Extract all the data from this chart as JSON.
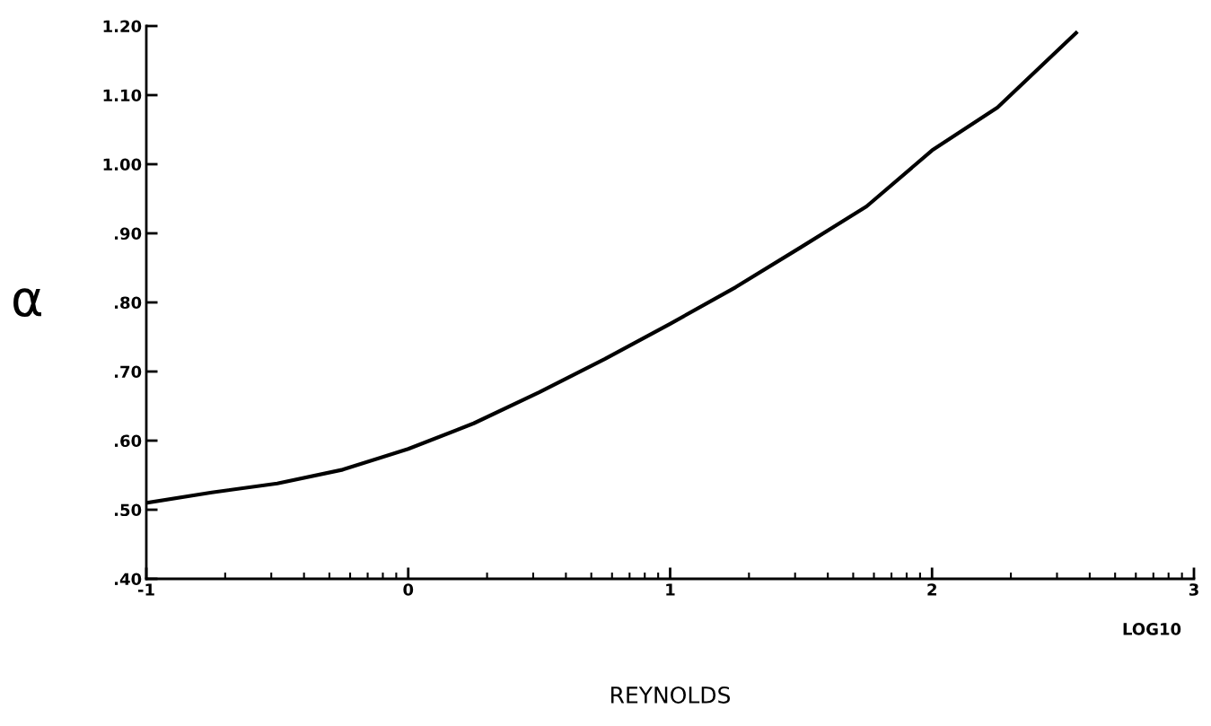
{
  "chart_data": {
    "type": "line",
    "xlabel": "REYNOLDS",
    "ylabel": "α",
    "annotations": [
      "LOG10"
    ],
    "x": [
      -1,
      -0.75,
      -0.5,
      -0.25,
      0,
      0.25,
      0.5,
      0.75,
      1,
      1.25,
      1.5,
      1.75,
      2,
      2.25,
      2.55
    ],
    "series": [
      {
        "color": "#000000",
        "values": [
          0.51,
          0.525,
          0.538,
          0.558,
          0.588,
          0.625,
          0.67,
          0.718,
          0.769,
          0.822,
          0.88,
          0.939,
          1.02,
          1.082,
          1.19
        ]
      }
    ],
    "xlim": [
      -1,
      3
    ],
    "xticks": [
      -1,
      0,
      1,
      2,
      3
    ],
    "ylim": [
      0.4,
      1.2
    ],
    "yticks": [
      {
        "value": 0.4,
        "label": ".40"
      },
      {
        "value": 0.5,
        "label": ".50"
      },
      {
        "value": 0.6,
        "label": ".60"
      },
      {
        "value": 0.7,
        "label": ".70"
      },
      {
        "value": 0.8,
        "label": ".80"
      },
      {
        "value": 0.9,
        "label": ".90"
      },
      {
        "value": 1.0,
        "label": "1.00"
      },
      {
        "value": 1.1,
        "label": "1.10"
      },
      {
        "value": 1.2,
        "label": "1.20"
      }
    ],
    "grid": false,
    "legend": false,
    "marker": "none",
    "line_style": "solid"
  }
}
